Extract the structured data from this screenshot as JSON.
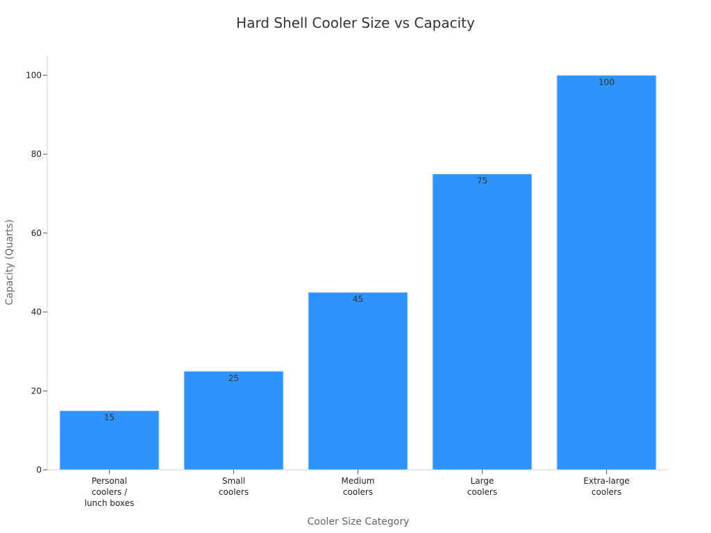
{
  "chart_data": {
    "type": "bar",
    "title": "Hard Shell Cooler Size vs Capacity",
    "xlabel": "Cooler Size Category",
    "ylabel": "Capacity (Quarts)",
    "categories": [
      [
        "Personal",
        "coolers /",
        "lunch boxes"
      ],
      [
        "Small",
        "coolers"
      ],
      [
        "Medium",
        "coolers"
      ],
      [
        "Large",
        "coolers"
      ],
      [
        "Extra-large",
        "coolers"
      ]
    ],
    "values": [
      15,
      25,
      45,
      75,
      100
    ],
    "data_labels": [
      "15",
      "25",
      "45",
      "75",
      "100"
    ],
    "ylim": [
      0,
      105
    ],
    "yticks": [
      0,
      20,
      40,
      60,
      80,
      100
    ],
    "grid": false,
    "bar_color": "#2e93fa"
  }
}
